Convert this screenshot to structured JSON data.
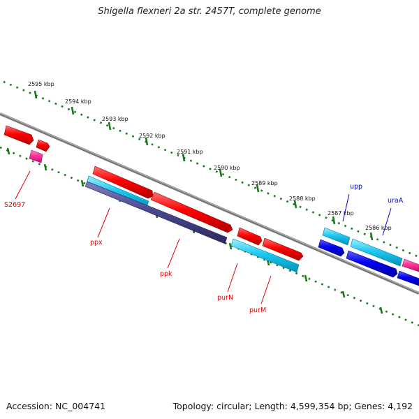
{
  "title": "Shigella flexneri 2a str. 2457T, complete genome",
  "footer": {
    "accession": "Accession: NC_004741",
    "summary": "Topology: circular; Length: 4,599,354 bp; Genes: 4,192"
  },
  "colors": {
    "backbone": "#808080",
    "tick": "#1a7a1a",
    "forward_gene": "#ff0000",
    "reverse_gene": "#1ec8f0",
    "pseudo_gene": "#ff3399",
    "rna_or_other": "#0000ee",
    "dark_band": "#4a4a90",
    "red_label": "#dd0000",
    "blue_label": "#0000cc"
  },
  "kbp_labels": [
    "2595 kbp",
    "2594 kbp",
    "2593 kbp",
    "2592 kbp",
    "2591 kbp",
    "2590 kbp",
    "2589 kbp",
    "2588 kbp",
    "2587 kbp",
    "2586 kbp"
  ],
  "gene_labels": [
    {
      "name": "S2697",
      "color": "red"
    },
    {
      "name": "ppx",
      "color": "red"
    },
    {
      "name": "ppk",
      "color": "red"
    },
    {
      "name": "purN",
      "color": "red"
    },
    {
      "name": "purM",
      "color": "red"
    },
    {
      "name": "upp",
      "color": "blue"
    },
    {
      "name": "uraA",
      "color": "blue"
    }
  ]
}
